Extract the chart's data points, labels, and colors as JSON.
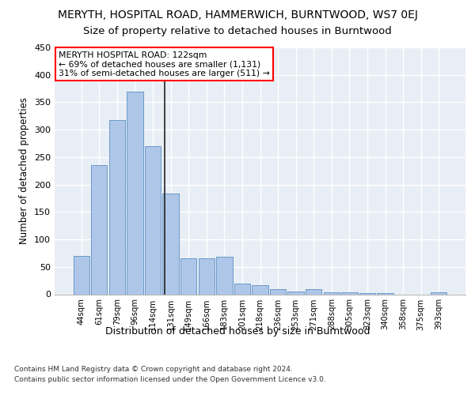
{
  "title": "MERYTH, HOSPITAL ROAD, HAMMERWICH, BURNTWOOD, WS7 0EJ",
  "subtitle": "Size of property relative to detached houses in Burntwood",
  "xlabel": "Distribution of detached houses by size in Burntwood",
  "ylabel": "Number of detached properties",
  "footer_line1": "Contains HM Land Registry data © Crown copyright and database right 2024.",
  "footer_line2": "Contains public sector information licensed under the Open Government Licence v3.0.",
  "categories": [
    "44sqm",
    "61sqm",
    "79sqm",
    "96sqm",
    "114sqm",
    "131sqm",
    "149sqm",
    "166sqm",
    "183sqm",
    "201sqm",
    "218sqm",
    "236sqm",
    "253sqm",
    "271sqm",
    "288sqm",
    "305sqm",
    "323sqm",
    "340sqm",
    "358sqm",
    "375sqm",
    "393sqm"
  ],
  "values": [
    70,
    236,
    318,
    370,
    270,
    184,
    65,
    65,
    68,
    20,
    17,
    10,
    5,
    10,
    4,
    4,
    2,
    2,
    0,
    0,
    3
  ],
  "bar_color": "#aec6e8",
  "bar_edge_color": "#5a8fc2",
  "vline_x": 4.65,
  "vline_color": "#222222",
  "annotation_text": "MERYTH HOSPITAL ROAD: 122sqm\n← 69% of detached houses are smaller (1,131)\n31% of semi-detached houses are larger (511) →",
  "annotation_box_color": "white",
  "annotation_box_edge": "red",
  "ylim": [
    0,
    450
  ],
  "yticks": [
    0,
    50,
    100,
    150,
    200,
    250,
    300,
    350,
    400,
    450
  ],
  "bg_color": "#e8eef5",
  "grid_color": "white",
  "title_fontsize": 10,
  "subtitle_fontsize": 9.5
}
